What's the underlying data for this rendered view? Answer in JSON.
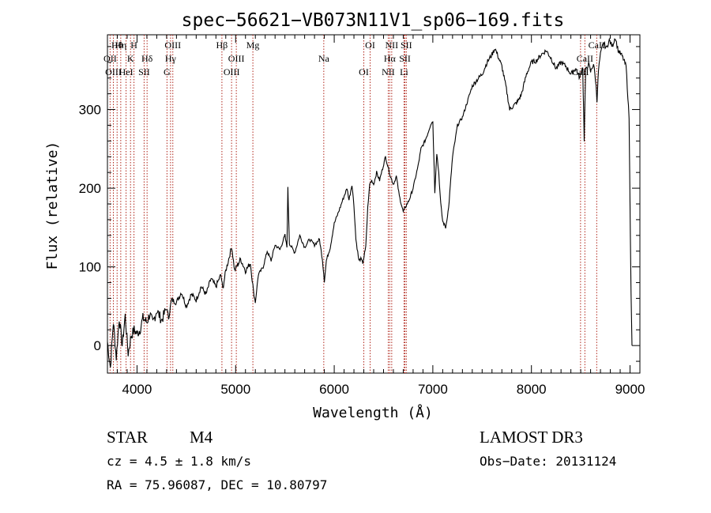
{
  "chart_data": {
    "type": "line",
    "title": "spec−56621−VB073N11V1_sp06−169.fits",
    "xlabel": "Wavelength (Å)",
    "ylabel": "Flux (relative)",
    "xlim": [
      3700,
      9100
    ],
    "ylim": [
      -35,
      395
    ],
    "xticks": [
      4000,
      5000,
      6000,
      7000,
      8000,
      9000
    ],
    "yticks": [
      0,
      100,
      200,
      300
    ],
    "series": [
      {
        "name": "spectrum",
        "color": "#000000",
        "points": [
          [
            3700,
            5
          ],
          [
            3730,
            -28
          ],
          [
            3760,
            30
          ],
          [
            3790,
            -15
          ],
          [
            3820,
            35
          ],
          [
            3850,
            0
          ],
          [
            3880,
            38
          ],
          [
            3910,
            -10
          ],
          [
            3940,
            12
          ],
          [
            3970,
            20
          ],
          [
            4000,
            15
          ],
          [
            4030,
            20
          ],
          [
            4060,
            35
          ],
          [
            4100,
            30
          ],
          [
            4130,
            40
          ],
          [
            4160,
            28
          ],
          [
            4200,
            45
          ],
          [
            4250,
            32
          ],
          [
            4300,
            48
          ],
          [
            4320,
            35
          ],
          [
            4350,
            58
          ],
          [
            4400,
            55
          ],
          [
            4450,
            68
          ],
          [
            4500,
            50
          ],
          [
            4550,
            65
          ],
          [
            4600,
            58
          ],
          [
            4650,
            75
          ],
          [
            4700,
            65
          ],
          [
            4750,
            85
          ],
          [
            4800,
            75
          ],
          [
            4850,
            90
          ],
          [
            4870,
            72
          ],
          [
            4900,
            95
          ],
          [
            4930,
            110
          ],
          [
            4960,
            126
          ],
          [
            4990,
            95
          ],
          [
            5010,
            100
          ],
          [
            5050,
            110
          ],
          [
            5100,
            95
          ],
          [
            5150,
            105
          ],
          [
            5180,
            70
          ],
          [
            5200,
            55
          ],
          [
            5230,
            90
          ],
          [
            5280,
            100
          ],
          [
            5320,
            120
          ],
          [
            5360,
            108
          ],
          [
            5400,
            128
          ],
          [
            5450,
            122
          ],
          [
            5500,
            140
          ],
          [
            5520,
            125
          ],
          [
            5530,
            200
          ],
          [
            5545,
            130
          ],
          [
            5600,
            118
          ],
          [
            5650,
            140
          ],
          [
            5700,
            125
          ],
          [
            5750,
            135
          ],
          [
            5800,
            128
          ],
          [
            5850,
            135
          ],
          [
            5880,
            110
          ],
          [
            5900,
            82
          ],
          [
            5920,
            108
          ],
          [
            5960,
            125
          ],
          [
            6000,
            155
          ],
          [
            6050,
            172
          ],
          [
            6100,
            190
          ],
          [
            6130,
            200
          ],
          [
            6150,
            185
          ],
          [
            6180,
            205
          ],
          [
            6200,
            178
          ],
          [
            6220,
            135
          ],
          [
            6250,
            108
          ],
          [
            6270,
            110
          ],
          [
            6290,
            105
          ],
          [
            6320,
            125
          ],
          [
            6340,
            175
          ],
          [
            6360,
            205
          ],
          [
            6380,
            210
          ],
          [
            6400,
            205
          ],
          [
            6430,
            220
          ],
          [
            6460,
            210
          ],
          [
            6490,
            225
          ],
          [
            6520,
            240
          ],
          [
            6550,
            225
          ],
          [
            6570,
            215
          ],
          [
            6600,
            205
          ],
          [
            6630,
            215
          ],
          [
            6660,
            190
          ],
          [
            6700,
            170
          ],
          [
            6730,
            178
          ],
          [
            6760,
            185
          ],
          [
            6800,
            200
          ],
          [
            6850,
            228
          ],
          [
            6880,
            250
          ],
          [
            6920,
            260
          ],
          [
            6950,
            270
          ],
          [
            6980,
            282
          ],
          [
            7000,
            285
          ],
          [
            7020,
            195
          ],
          [
            7040,
            245
          ],
          [
            7060,
            220
          ],
          [
            7080,
            180
          ],
          [
            7100,
            158
          ],
          [
            7130,
            150
          ],
          [
            7160,
            175
          ],
          [
            7200,
            240
          ],
          [
            7250,
            280
          ],
          [
            7300,
            290
          ],
          [
            7350,
            310
          ],
          [
            7400,
            330
          ],
          [
            7450,
            338
          ],
          [
            7500,
            345
          ],
          [
            7550,
            360
          ],
          [
            7600,
            370
          ],
          [
            7630,
            378
          ],
          [
            7660,
            368
          ],
          [
            7700,
            355
          ],
          [
            7740,
            330
          ],
          [
            7780,
            300
          ],
          [
            7820,
            305
          ],
          [
            7860,
            310
          ],
          [
            7900,
            320
          ],
          [
            7950,
            345
          ],
          [
            8000,
            360
          ],
          [
            8050,
            362
          ],
          [
            8100,
            370
          ],
          [
            8150,
            375
          ],
          [
            8200,
            365
          ],
          [
            8250,
            352
          ],
          [
            8300,
            360
          ],
          [
            8350,
            355
          ],
          [
            8400,
            345
          ],
          [
            8450,
            352
          ],
          [
            8490,
            340
          ],
          [
            8520,
            355
          ],
          [
            8535,
            262
          ],
          [
            8550,
            350
          ],
          [
            8580,
            358
          ],
          [
            8600,
            348
          ],
          [
            8630,
            358
          ],
          [
            8650,
            338
          ],
          [
            8665,
            312
          ],
          [
            8680,
            350
          ],
          [
            8700,
            370
          ],
          [
            8730,
            385
          ],
          [
            8760,
            378
          ],
          [
            8790,
            388
          ],
          [
            8820,
            380
          ],
          [
            8850,
            392
          ],
          [
            8880,
            375
          ],
          [
            8920,
            368
          ],
          [
            8960,
            355
          ],
          [
            8990,
            290
          ],
          [
            9010,
            70
          ],
          [
            9020,
            0
          ]
        ]
      }
    ],
    "lines": [
      {
        "label": "Hθ",
        "x": 3798
      },
      {
        "label": "OII",
        "x": 3727
      },
      {
        "label": "OIII",
        "x": 3760
      },
      {
        "label": "Hη",
        "x": 3835
      },
      {
        "label": "K",
        "x": 3934
      },
      {
        "label": "HeI",
        "x": 3889
      },
      {
        "label": "H",
        "x": 3969
      },
      {
        "label": "Hδ",
        "x": 4102
      },
      {
        "label": "SII",
        "x": 4072
      },
      {
        "label": "OIII",
        "x": 4363
      },
      {
        "label": "Hγ",
        "x": 4340
      },
      {
        "label": "G",
        "x": 4304
      },
      {
        "label": "Hβ",
        "x": 4861
      },
      {
        "label": "OIII",
        "x": 5007
      },
      {
        "label": "OIII",
        "x": 4959
      },
      {
        "label": "Mg",
        "x": 5175
      },
      {
        "label": "Na",
        "x": 5894
      },
      {
        "label": "OI",
        "x": 6300
      },
      {
        "label": "OI",
        "x": 6364
      },
      {
        "label": "Hα",
        "x": 6563
      },
      {
        "label": "NII",
        "x": 6548
      },
      {
        "label": "NII",
        "x": 6583
      },
      {
        "label": "SII",
        "x": 6717
      },
      {
        "label": "Li",
        "x": 6708
      },
      {
        "label": "SII",
        "x": 6731
      },
      {
        "label": "CaII",
        "x": 8542
      },
      {
        "label": "CaII",
        "x": 8498
      },
      {
        "label": "CaII",
        "x": 8662
      }
    ],
    "line_color": "#b0251a"
  },
  "info": {
    "object_class": "STAR",
    "subclass": "M4",
    "survey": "LAMOST DR3",
    "redshift": "cz = 4.5 ± 1.8 km/s",
    "obs_date": "Obs−Date: 20131124",
    "coords": "RA =  75.96087, DEC =  10.80797"
  }
}
